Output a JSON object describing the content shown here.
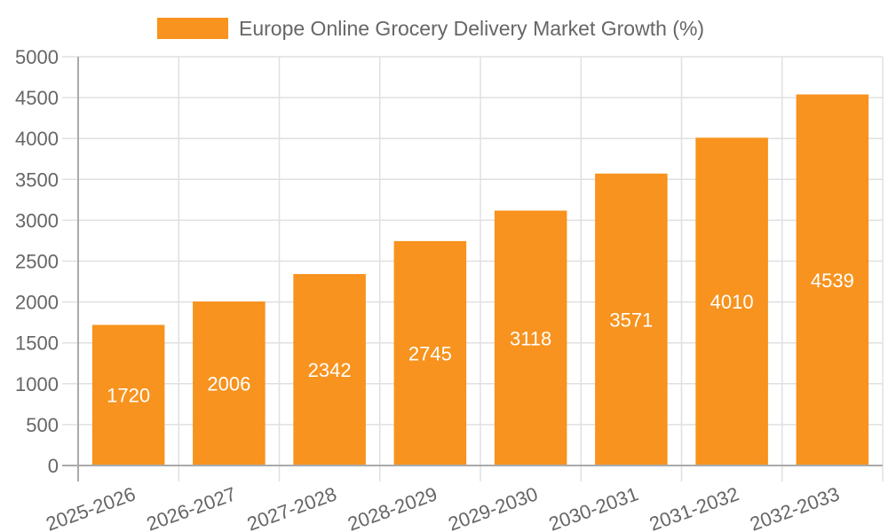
{
  "chart_data": {
    "type": "bar",
    "title": "",
    "legend": [
      {
        "label": "Europe Online Grocery Delivery Market Growth (%)",
        "color": "#f7931e"
      }
    ],
    "legend_position": "top",
    "categories": [
      "2025-2026",
      "2026-2027",
      "2027-2028",
      "2028-2029",
      "2029-2030",
      "2030-2031",
      "2031-2032",
      "2032-2033"
    ],
    "series": [
      {
        "name": "Europe Online Grocery Delivery Market Growth (%)",
        "values": [
          1720,
          2006,
          2342,
          2745,
          3118,
          3571,
          4010,
          4539
        ],
        "color": "#f7931e"
      }
    ],
    "xlabel": "",
    "ylabel": "",
    "ylim": [
      0,
      5000
    ],
    "yticks": [
      0,
      500,
      1000,
      1500,
      2000,
      2500,
      3000,
      3500,
      4000,
      4500,
      5000
    ],
    "grid": true,
    "data_labels": true,
    "data_label_color": "#ffffff",
    "x_tick_rotation": -20
  },
  "legend": {
    "label": "Europe Online Grocery Delivery Market Growth (%)"
  }
}
